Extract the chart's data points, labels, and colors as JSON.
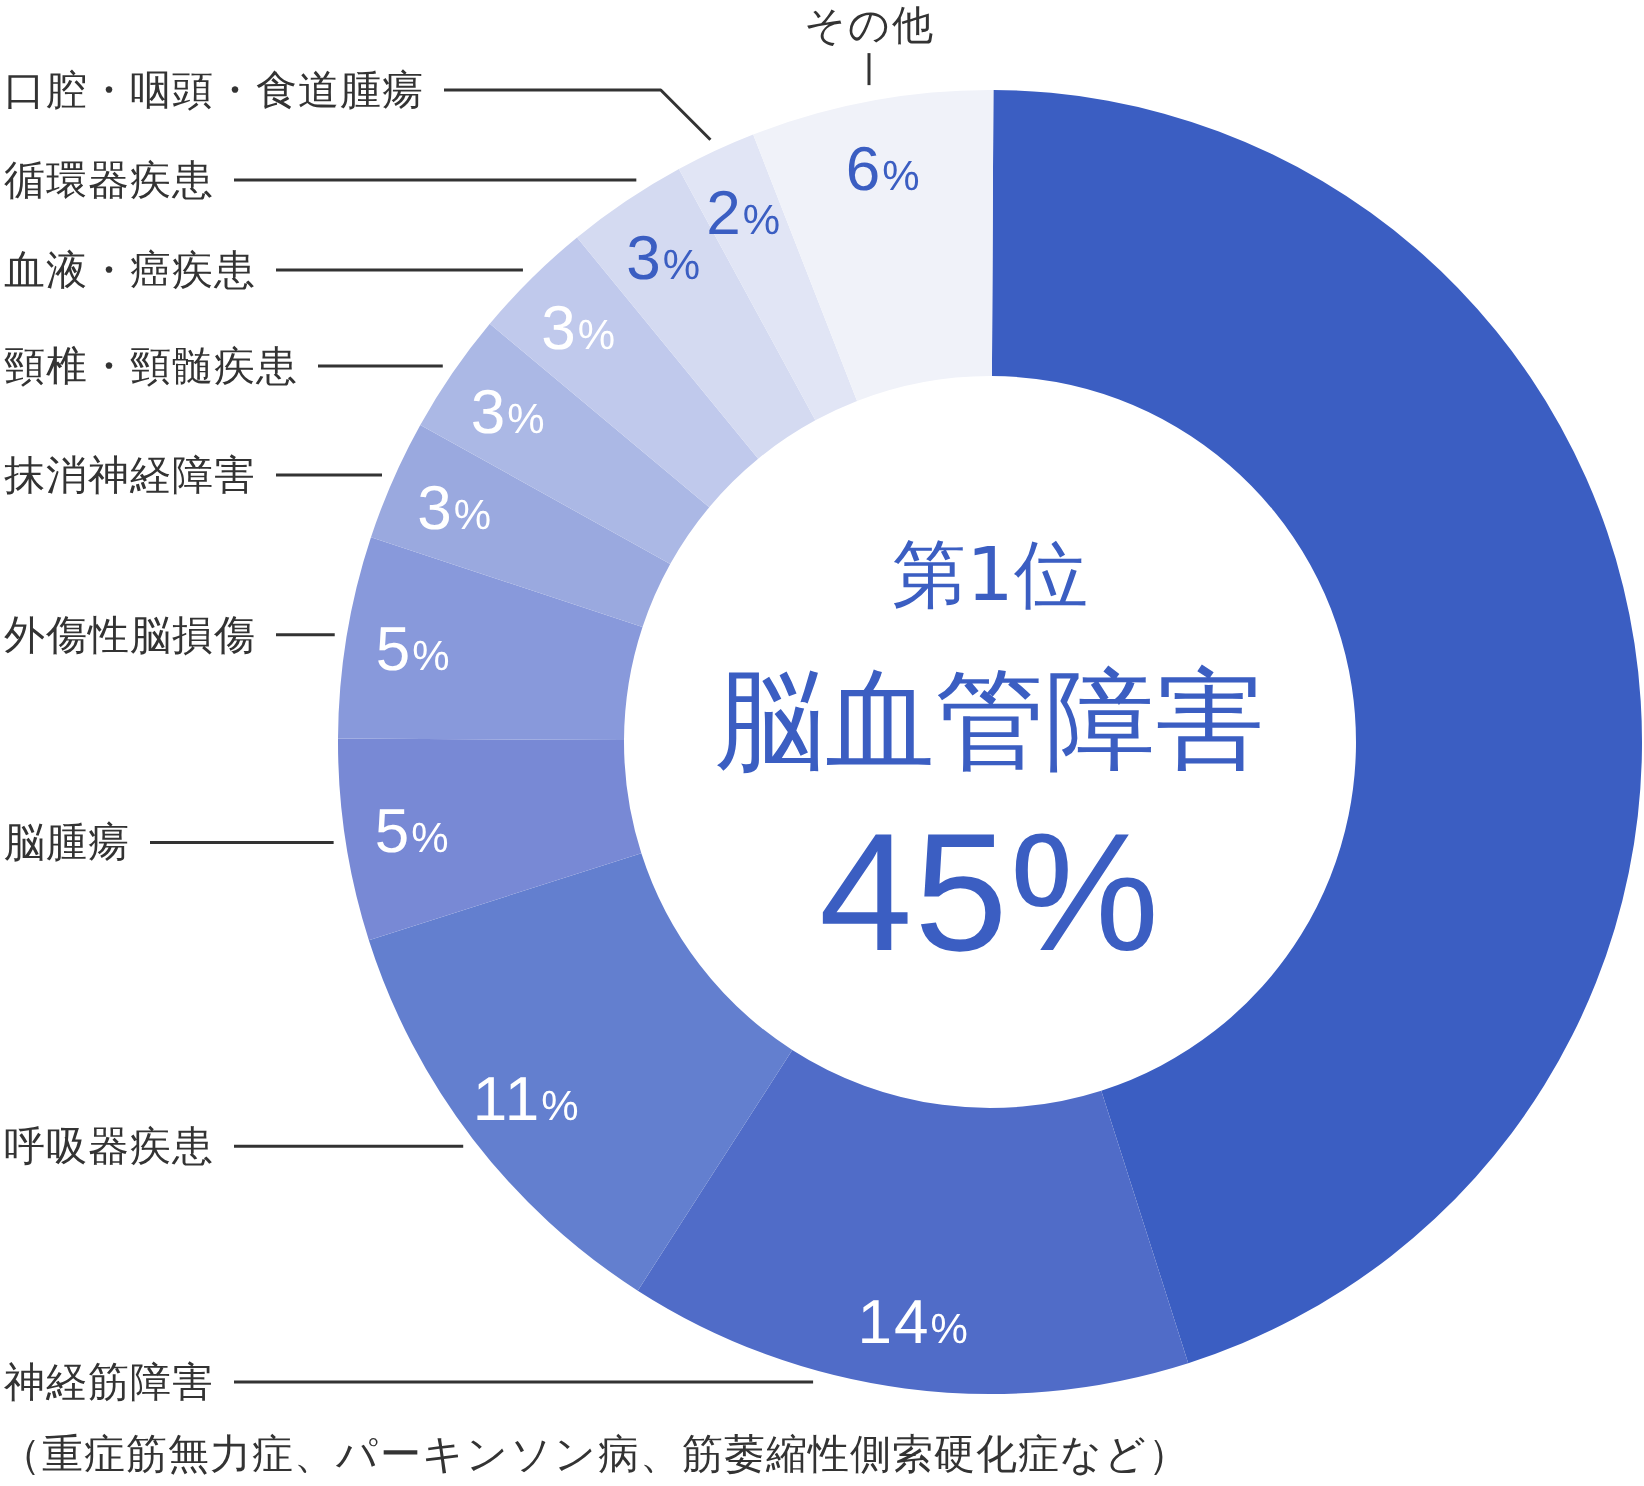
{
  "chart_data": {
    "type": "donut",
    "categories": [
      "脳血管障害",
      "神経筋障害",
      "呼吸器疾患",
      "脳腫瘍",
      "外傷性脳損傷",
      "抹消神経障害",
      "頸椎・頸髄疾患",
      "血液・癌疾患",
      "循環器疾患",
      "口腔・咽頭・食道腫瘍",
      "その他"
    ],
    "values": [
      45,
      14,
      11,
      5,
      5,
      3,
      3,
      3,
      3,
      2,
      6
    ],
    "colors": [
      "#3b5ec2",
      "#506cc8",
      "#637fcf",
      "#7889d5",
      "#8899db",
      "#9aa9df",
      "#abb8e5",
      "#c0c9ec",
      "#d4daf1",
      "#e1e5f5",
      "#f0f2f9"
    ],
    "value_labels": [
      "45%",
      "14%",
      "11%",
      "5%",
      "5%",
      "3%",
      "3%",
      "3%",
      "3%",
      "2%",
      "6%"
    ],
    "annotations": [
      "第1位",
      "（重症筋無力症、パーキンソン病、筋萎縮性側索硬化症など）"
    ]
  }
}
